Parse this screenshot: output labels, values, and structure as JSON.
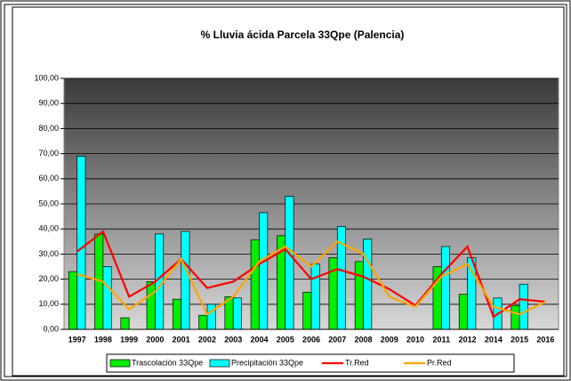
{
  "chart_data": {
    "type": "bar",
    "title": "% Lluvia ácida Parcela 33Qpe (Palencia)",
    "categories": [
      "1997",
      "1998",
      "1999",
      "2000",
      "2001",
      "2002",
      "2003",
      "2004",
      "2005",
      "2006",
      "2007",
      "2008",
      "2009",
      "2010",
      "2011",
      "2012",
      "2014",
      "2015",
      "2016"
    ],
    "series": [
      {
        "name": "Trascolación  33Qpe",
        "type": "bar",
        "color": "#00ee00",
        "values": [
          23,
          38,
          4.6,
          19,
          12,
          5.6,
          13,
          35.6,
          37.3,
          14.8,
          28.5,
          27,
          null,
          null,
          25,
          14,
          null,
          9.5,
          null
        ]
      },
      {
        "name": "Precipitación 33Qpe",
        "type": "bar",
        "color": "#00ffff",
        "values": [
          69,
          25,
          null,
          38,
          39,
          10,
          12.5,
          46.5,
          53,
          26,
          41,
          36,
          null,
          null,
          33,
          28.5,
          12.5,
          18,
          null
        ]
      },
      {
        "name": "Tr.Red",
        "type": "line",
        "color": "#ff0000",
        "values": [
          31,
          39,
          13,
          19,
          28,
          16.5,
          19,
          26,
          32,
          20,
          24,
          21,
          16,
          9.5,
          22,
          33,
          5,
          12,
          11
        ]
      },
      {
        "name": "Pr.Red",
        "type": "line",
        "color": "#ffa500",
        "values": [
          22,
          19,
          8,
          15,
          28,
          6,
          13,
          27,
          33,
          25,
          35,
          30,
          13,
          9,
          21,
          26,
          9,
          6,
          11
        ]
      }
    ],
    "ylim": [
      0,
      100
    ],
    "yticks": [
      {
        "value": 0,
        "label": "0,00"
      },
      {
        "value": 10,
        "label": "10,00"
      },
      {
        "value": 20,
        "label": "20,00"
      },
      {
        "value": 30,
        "label": "30,00"
      },
      {
        "value": 40,
        "label": "40,00"
      },
      {
        "value": 50,
        "label": "50,00"
      },
      {
        "value": 60,
        "label": "60,00"
      },
      {
        "value": 70,
        "label": "70,00"
      },
      {
        "value": 80,
        "label": "80,00"
      },
      {
        "value": 90,
        "label": "90,00"
      },
      {
        "value": 100,
        "label": "100,00"
      }
    ],
    "grid": true,
    "legend": "bottom"
  }
}
